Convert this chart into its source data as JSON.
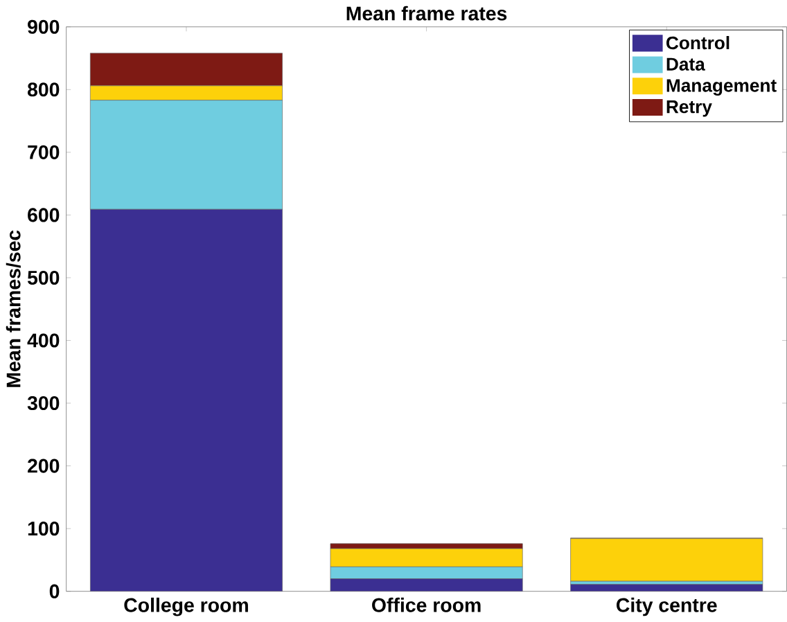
{
  "chart_data": {
    "type": "bar",
    "stacked": true,
    "title": "Mean frame rates",
    "ylabel": "Mean frames/sec",
    "categories": [
      "College room",
      "Office room",
      "City centre"
    ],
    "series": [
      {
        "name": "Control",
        "color": "#3b2f92",
        "values": [
          609,
          20,
          11
        ]
      },
      {
        "name": "Data",
        "color": "#6fcde0",
        "values": [
          174,
          19,
          5
        ]
      },
      {
        "name": "Management",
        "color": "#fdd10a",
        "values": [
          23,
          29,
          68
        ]
      },
      {
        "name": "Retry",
        "color": "#7e1a14",
        "values": [
          52,
          8,
          1
        ]
      }
    ],
    "ylim": [
      0,
      900
    ],
    "yticks": [
      0,
      100,
      200,
      300,
      400,
      500,
      600,
      700,
      800,
      900
    ],
    "legend": "top right"
  }
}
